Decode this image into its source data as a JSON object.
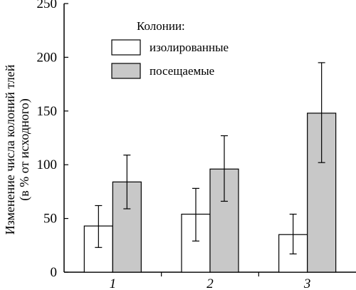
{
  "chart_data": {
    "type": "bar",
    "ylabel_line1": "Изменение числа колоний тлей",
    "ylabel_line2": "(в % от исходного)",
    "ylim": [
      0,
      250
    ],
    "yticks": [
      0,
      50,
      100,
      150,
      200,
      250
    ],
    "categories": [
      "1",
      "2",
      "3"
    ],
    "legend_title": "Колонии:",
    "legend_position": "top",
    "series": [
      {
        "name": "изолированные",
        "color": "#ffffff",
        "values": [
          43,
          54,
          35
        ],
        "err_low": [
          23,
          29,
          17
        ],
        "err_high": [
          62,
          78,
          54
        ]
      },
      {
        "name": "посещаемые",
        "color": "#c8c8c8",
        "values": [
          84,
          96,
          148
        ],
        "err_low": [
          59,
          66,
          102
        ],
        "err_high": [
          109,
          127,
          195
        ]
      }
    ]
  }
}
